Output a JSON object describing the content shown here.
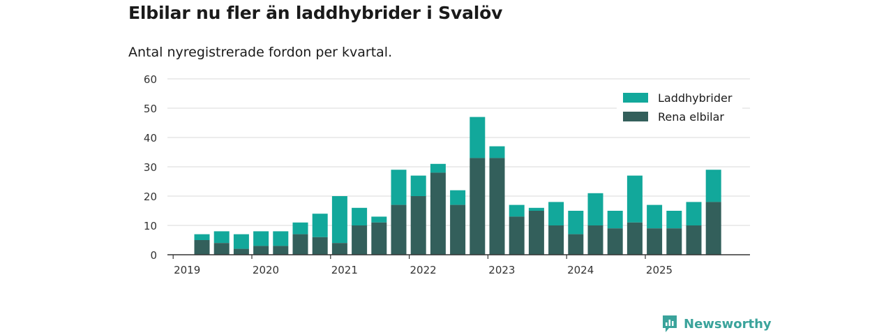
{
  "title": "Elbilar nu fler än laddhybrider i Svalöv",
  "subtitle": "Antal nyregistrerade fordon per kvartal.",
  "brand": {
    "name": "Newsworthy",
    "icon": "newsworthy-logo-icon"
  },
  "colors": {
    "laddhybrider": "#12a89b",
    "rena_elbilar": "#335f5b",
    "grid": "#d9d9d9",
    "axis": "#333333"
  },
  "chart_data": {
    "type": "bar",
    "stacked": true,
    "categories": [
      "2019 Q2",
      "2019 Q3",
      "2019 Q4",
      "2020 Q1",
      "2020 Q2",
      "2020 Q3",
      "2020 Q4",
      "2021 Q1",
      "2021 Q2",
      "2021 Q3",
      "2021 Q4",
      "2022 Q1",
      "2022 Q2",
      "2022 Q3",
      "2022 Q4",
      "2023 Q1",
      "2023 Q2",
      "2023 Q3",
      "2023 Q4",
      "2024 Q1",
      "2024 Q2",
      "2024 Q3",
      "2024 Q4",
      "2025 Q1",
      "2025 Q2",
      "2025 Q3",
      "2025 Q4"
    ],
    "series": [
      {
        "name": "Rena elbilar",
        "values": [
          5,
          4,
          2,
          3,
          3,
          7,
          6,
          4,
          10,
          11,
          17,
          20,
          28,
          17,
          33,
          33,
          13,
          15,
          10,
          7,
          10,
          9,
          11,
          9,
          9,
          10,
          18
        ]
      },
      {
        "name": "Laddhybrider",
        "values": [
          2,
          4,
          5,
          5,
          5,
          4,
          8,
          16,
          6,
          2,
          12,
          7,
          3,
          5,
          14,
          4,
          4,
          1,
          8,
          8,
          11,
          6,
          16,
          8,
          6,
          8,
          11
        ]
      }
    ],
    "legend": [
      "Laddhybrider",
      "Rena elbilar"
    ],
    "legend_position": "top-right",
    "ylim": [
      0,
      60
    ],
    "yticks": [
      0,
      10,
      20,
      30,
      40,
      50,
      60
    ],
    "xtick_labels": [
      "2019",
      "2020",
      "2021",
      "2022",
      "2023",
      "2024",
      "2025"
    ],
    "grid": true,
    "xlabel": "",
    "ylabel": ""
  }
}
